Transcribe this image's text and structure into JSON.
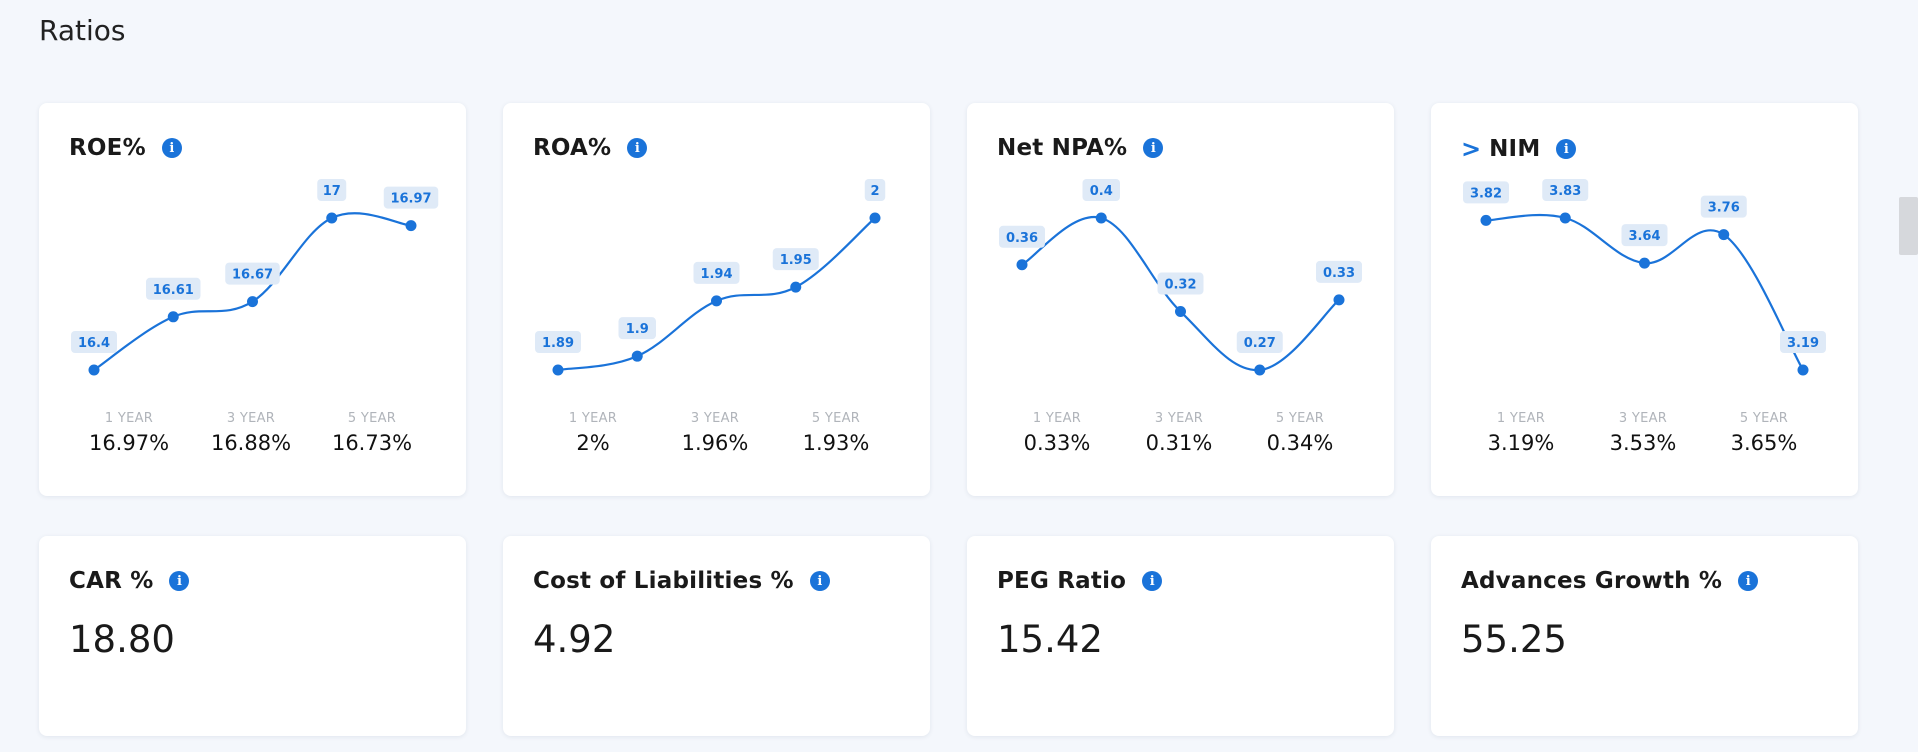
{
  "section": {
    "title": "Ratios"
  },
  "chart_cards": [
    {
      "title": "ROE%",
      "has_chevron": false,
      "info_icon": "info-icon",
      "chart_data": {
        "type": "line",
        "values": [
          16.4,
          16.61,
          16.67,
          17,
          16.97
        ],
        "labels": [
          "16.4",
          "16.61",
          "16.67",
          "17",
          "16.97"
        ]
      },
      "periods": [
        {
          "label": "1 YEAR",
          "value": "16.97%"
        },
        {
          "label": "3 YEAR",
          "value": "16.88%"
        },
        {
          "label": "5 YEAR",
          "value": "16.73%"
        }
      ]
    },
    {
      "title": "ROA%",
      "has_chevron": false,
      "info_icon": "info-icon",
      "chart_data": {
        "type": "line",
        "values": [
          1.89,
          1.9,
          1.94,
          1.95,
          2
        ],
        "labels": [
          "1.89",
          "1.9",
          "1.94",
          "1.95",
          "2"
        ]
      },
      "periods": [
        {
          "label": "1 YEAR",
          "value": "2%"
        },
        {
          "label": "3 YEAR",
          "value": "1.96%"
        },
        {
          "label": "5 YEAR",
          "value": "1.93%"
        }
      ]
    },
    {
      "title": "Net NPA%",
      "has_chevron": false,
      "info_icon": "info-icon",
      "chart_data": {
        "type": "line",
        "values": [
          0.36,
          0.4,
          0.32,
          0.27,
          0.33
        ],
        "labels": [
          "0.36",
          "0.4",
          "0.32",
          "0.27",
          "0.33"
        ]
      },
      "periods": [
        {
          "label": "1 YEAR",
          "value": "0.33%"
        },
        {
          "label": "3 YEAR",
          "value": "0.31%"
        },
        {
          "label": "5 YEAR",
          "value": "0.34%"
        }
      ]
    },
    {
      "title": "NIM",
      "has_chevron": true,
      "chevron": ">",
      "info_icon": "info-icon",
      "chart_data": {
        "type": "line",
        "values": [
          3.82,
          3.83,
          3.64,
          3.76,
          3.19
        ],
        "labels": [
          "3.82",
          "3.83",
          "3.64",
          "3.76",
          "3.19"
        ]
      },
      "periods": [
        {
          "label": "1 YEAR",
          "value": "3.19%"
        },
        {
          "label": "3 YEAR",
          "value": "3.53%"
        },
        {
          "label": "5 YEAR",
          "value": "3.65%"
        }
      ]
    }
  ],
  "value_cards": [
    {
      "title": "CAR %",
      "value": "18.80",
      "info_icon": "info-icon"
    },
    {
      "title": "Cost of Liabilities %",
      "value": "4.92",
      "info_icon": "info-icon"
    },
    {
      "title": "PEG Ratio",
      "value": "15.42",
      "info_icon": "info-icon"
    },
    {
      "title": "Advances Growth %",
      "value": "55.25",
      "info_icon": "info-icon"
    }
  ],
  "colors": {
    "accent": "#1a73d9",
    "label_bg": "#dfeaf7",
    "page_bg": "#f4f7fc"
  }
}
